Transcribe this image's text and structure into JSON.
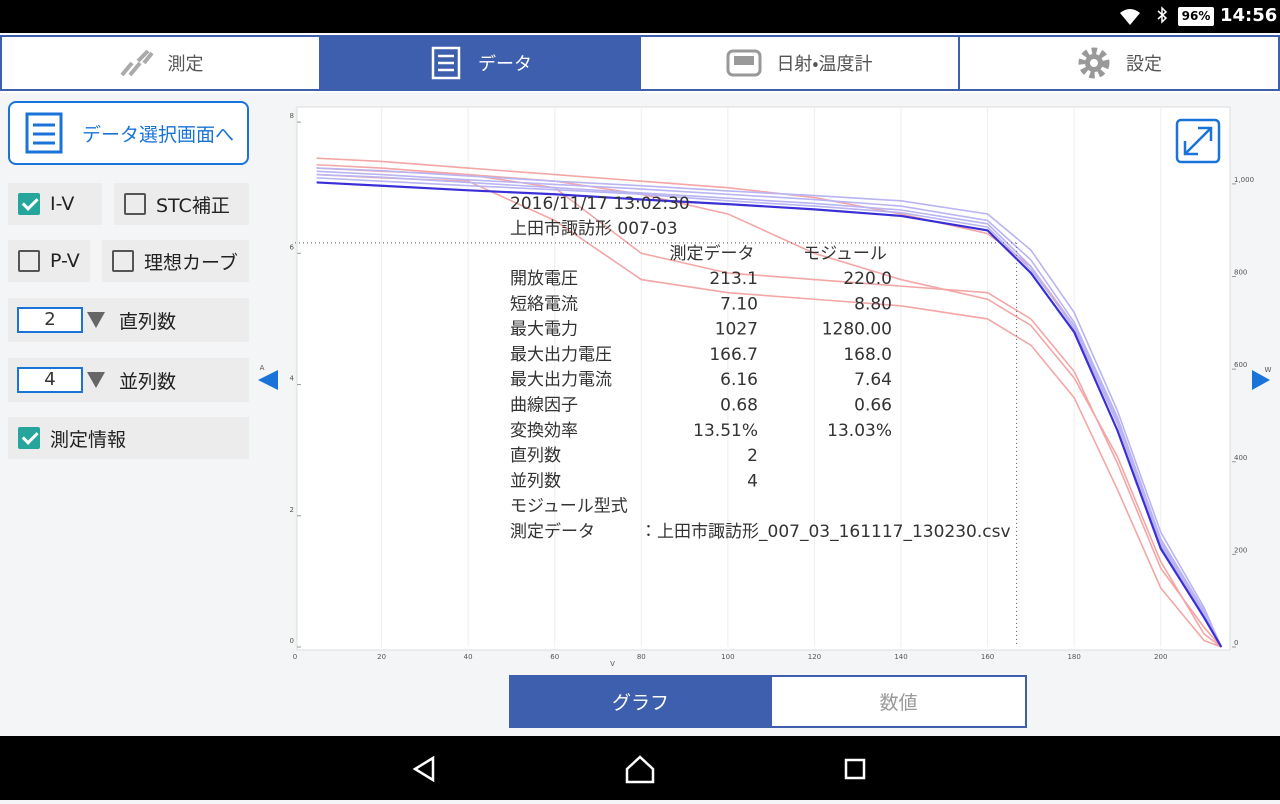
{
  "status_bar": {
    "battery": "96%",
    "time": "14:56"
  },
  "tabs": [
    {
      "label": "測定",
      "active": false
    },
    {
      "label": "データ",
      "active": true
    },
    {
      "label": "日射・温度計",
      "active": false
    },
    {
      "label": "設定",
      "active": false
    }
  ],
  "sidebar": {
    "select_button": "データ選択画面へ",
    "options": [
      {
        "label": "I-V",
        "checked": true
      },
      {
        "label": "STC補正",
        "checked": false
      },
      {
        "label": "P-V",
        "checked": false
      },
      {
        "label": "理想カーブ",
        "checked": false
      }
    ],
    "series_count": {
      "value": "2",
      "label": "直列数"
    },
    "parallel_count": {
      "value": "4",
      "label": "並列数"
    },
    "info_option": {
      "label": "測定情報",
      "checked": true
    }
  },
  "view_toggle": [
    {
      "label": "グラフ",
      "active": true
    },
    {
      "label": "数値",
      "active": false
    }
  ],
  "chart_data": {
    "type": "line",
    "x_label": "V",
    "y_label": "A",
    "y2_label": "W",
    "xlim": [
      0,
      216
    ],
    "xticks": [
      0,
      20,
      40,
      60,
      80,
      100,
      120,
      140,
      160,
      180,
      200
    ],
    "ylim": [
      0,
      8.23
    ],
    "yticks": [
      0,
      2,
      4,
      6,
      8
    ],
    "y2lim": [
      0,
      1166
    ],
    "y2ticks": [
      0,
      200,
      400,
      600,
      800,
      {
        "value": 1000,
        "label": "1,000"
      }
    ],
    "grid": true,
    "x": [
      5,
      20,
      40,
      60,
      80,
      100,
      120,
      140,
      160,
      170,
      180,
      190,
      200,
      210,
      214
    ],
    "series": [
      {
        "color": "#f4a6a6",
        "values": [
          7.45,
          7.4,
          7.3,
          7.2,
          7.1,
          7.0,
          6.85,
          6.6,
          6.3,
          5.8,
          4.9,
          3.4,
          1.6,
          0.5,
          0
        ]
      },
      {
        "color": "#f4a6a6",
        "values": [
          7.3,
          7.25,
          7.2,
          7.0,
          6.0,
          5.7,
          5.6,
          5.5,
          5.4,
          5.0,
          4.2,
          2.8,
          1.2,
          0.3,
          0
        ]
      },
      {
        "color": "#f4a6a6",
        "values": [
          7.2,
          7.15,
          7.1,
          6.5,
          5.6,
          5.4,
          5.3,
          5.2,
          5.0,
          4.6,
          3.8,
          2.4,
          0.9,
          0.1,
          0
        ]
      },
      {
        "color": "#f4a6a6",
        "values": [
          7.35,
          7.3,
          7.2,
          7.1,
          6.9,
          6.6,
          6.0,
          5.6,
          5.3,
          4.9,
          4.1,
          2.9,
          1.3,
          0.2,
          0
        ]
      },
      {
        "color": "#b9b4f2",
        "values": [
          7.25,
          7.2,
          7.12,
          7.05,
          6.98,
          6.9,
          6.82,
          6.72,
          6.5,
          5.9,
          4.95,
          3.5,
          1.65,
          0.55,
          0
        ]
      },
      {
        "color": "#b9b4f2",
        "values": [
          7.3,
          7.26,
          7.18,
          7.1,
          7.03,
          6.95,
          6.88,
          6.8,
          6.6,
          6.05,
          5.1,
          3.6,
          1.75,
          0.6,
          0
        ]
      },
      {
        "color": "#b9b4f2",
        "values": [
          7.2,
          7.16,
          7.08,
          7.0,
          6.92,
          6.84,
          6.76,
          6.66,
          6.45,
          5.8,
          4.85,
          3.4,
          1.55,
          0.5,
          0
        ]
      },
      {
        "color": "#b9b4f2",
        "values": [
          7.15,
          7.1,
          7.03,
          6.97,
          6.9,
          6.8,
          6.72,
          6.62,
          6.4,
          5.75,
          4.9,
          3.45,
          1.6,
          0.52,
          0
        ]
      },
      {
        "color": "#3a2fd6",
        "values": [
          7.08,
          7.03,
          6.96,
          6.9,
          6.82,
          6.75,
          6.67,
          6.57,
          6.35,
          5.7,
          4.8,
          3.3,
          1.5,
          0.45,
          0
        ]
      }
    ],
    "marker": {
      "x": 166.7,
      "y": 6.16
    }
  },
  "info": {
    "date": "2016/11/17  13:02:30",
    "location": "上田市諏訪形  007-03",
    "headers": [
      "測定データ",
      "モジュール"
    ],
    "rows": [
      [
        "開放電圧",
        "213.1",
        "220.0"
      ],
      [
        "短絡電流",
        "7.10",
        "8.80"
      ],
      [
        "最大電力",
        "1027",
        "1280.00"
      ],
      [
        "最大出力電圧",
        "166.7",
        "168.0"
      ],
      [
        "最大出力電流",
        "6.16",
        "7.64"
      ],
      [
        "曲線因子",
        "0.68",
        "0.66"
      ],
      [
        "変換効率",
        "13.51%",
        "13.03%"
      ],
      [
        "直列数",
        "2"
      ],
      [
        "並列数",
        "4"
      ],
      [
        "モジュール型式"
      ]
    ],
    "file": [
      "測定データ",
      "：上田市諏訪形_007_03_161117_130230.csv"
    ]
  }
}
